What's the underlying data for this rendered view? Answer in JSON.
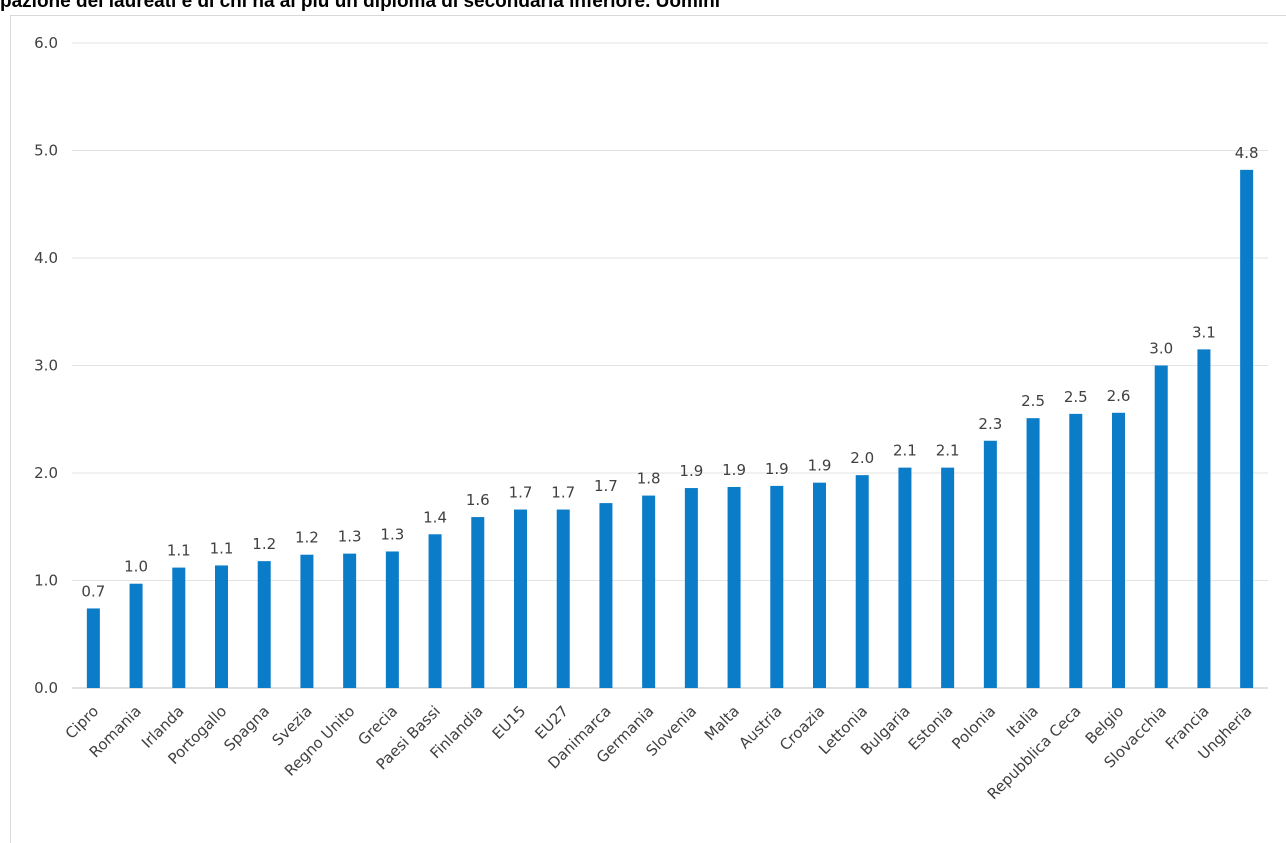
{
  "title": "pazione dei laureati e di chi ha al più un diploma di secondaria inferiore. Uomini",
  "chart_data": {
    "type": "bar",
    "title": "pazione dei laureati e di chi ha al più un diploma di secondaria inferiore. Uomini",
    "xlabel": "",
    "ylabel": "",
    "ylim": [
      0,
      6
    ],
    "yticks": [
      "0.0",
      "1.0",
      "2.0",
      "3.0",
      "4.0",
      "5.0",
      "6.0"
    ],
    "grid": true,
    "bar_color": "#0a7cc8",
    "categories": [
      "Cipro",
      "Romania",
      "Irlanda",
      "Portogallo",
      "Spagna",
      "Svezia",
      "Regno Unito",
      "Grecia",
      "Paesi Bassi",
      "Finlandia",
      "EU15",
      "EU27",
      "Danimarca",
      "Germania",
      "Slovenia",
      "Malta",
      "Austria",
      "Croazia",
      "Lettonia",
      "Bulgaria",
      "Estonia",
      "Polonia",
      "Italia",
      "Repubblica Ceca",
      "Belgio",
      "Slovacchia",
      "Francia",
      "Ungheria"
    ],
    "values": [
      0.74,
      0.97,
      1.12,
      1.14,
      1.18,
      1.24,
      1.25,
      1.27,
      1.43,
      1.59,
      1.66,
      1.66,
      1.72,
      1.79,
      1.86,
      1.87,
      1.88,
      1.91,
      1.98,
      2.05,
      2.05,
      2.3,
      2.51,
      2.55,
      2.56,
      3.0,
      3.15,
      4.82
    ],
    "labels": [
      "0.7",
      "1.0",
      "1.1",
      "1.1",
      "1.2",
      "1.2",
      "1.3",
      "1.3",
      "1.4",
      "1.6",
      "1.7",
      "1.7",
      "1.7",
      "1.8",
      "1.9",
      "1.9",
      "1.9",
      "1.9",
      "2.0",
      "2.1",
      "2.1",
      "2.3",
      "2.5",
      "2.5",
      "2.6",
      "3.0",
      "3.1",
      "4.8"
    ]
  }
}
